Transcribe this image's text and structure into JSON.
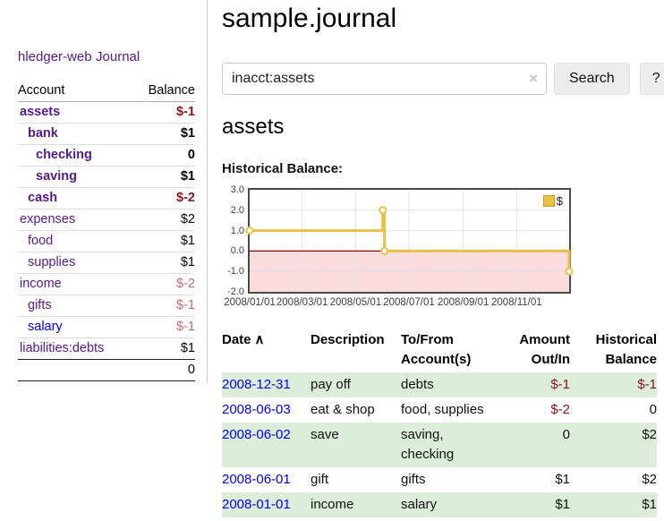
{
  "app": {
    "brand": "hledger-web",
    "nav_journal": "Journal"
  },
  "sidebar": {
    "accounts_table": {
      "headers": {
        "account": "Account",
        "balance": "Balance"
      },
      "rows": [
        {
          "account": "assets",
          "depth": 1,
          "bold": true,
          "balance": "$-1",
          "balance_style": "neg-strong"
        },
        {
          "account": "bank",
          "depth": 2,
          "bold": true,
          "balance": "$1",
          "balance_style": "pos"
        },
        {
          "account": "checking",
          "depth": 3,
          "bold": true,
          "balance": "0",
          "balance_style": "pos"
        },
        {
          "account": "saving",
          "depth": 3,
          "bold": true,
          "balance": "$1",
          "balance_style": "pos"
        },
        {
          "account": "cash",
          "depth": 2,
          "bold": true,
          "balance": "$-2",
          "balance_style": "neg-strong"
        },
        {
          "account": "expenses",
          "depth": 1,
          "bold": false,
          "balance": "$2",
          "balance_style": "pos"
        },
        {
          "account": "food",
          "depth": 2,
          "bold": false,
          "balance": "$1",
          "balance_style": "pos"
        },
        {
          "account": "supplies",
          "depth": 2,
          "bold": false,
          "balance": "$1",
          "balance_style": "pos"
        },
        {
          "account": "income",
          "depth": 1,
          "bold": false,
          "balance": "$-2",
          "balance_style": "neg-soft"
        },
        {
          "account": "gifts",
          "depth": 2,
          "bold": false,
          "balance": "$-1",
          "balance_style": "neg-soft"
        },
        {
          "account": "salary",
          "depth": 2,
          "bold": false,
          "balance": "$-1",
          "balance_style": "neg-soft",
          "link_color": "blue"
        },
        {
          "account": "liabilities:debts",
          "depth": 1,
          "bold": false,
          "balance": "$1",
          "balance_style": "pos"
        }
      ],
      "total": "0"
    }
  },
  "header": {
    "title": "sample.journal"
  },
  "search": {
    "value": "inacct:assets",
    "clear_icon": "×",
    "button_label": "Search",
    "help_label": "?"
  },
  "account_page": {
    "heading": "assets",
    "chart_label": "Historical Balance:"
  },
  "chart_data": {
    "type": "line",
    "style": "step-after",
    "title": "Historical Balance",
    "legend": "$",
    "legend_position": "top-right",
    "grid": true,
    "xrange": [
      "2008-01-01",
      "2008-12-31"
    ],
    "ylim": [
      -2,
      3
    ],
    "yticks": [
      {
        "v": 3,
        "label": "3.0"
      },
      {
        "v": 2,
        "label": "2.0"
      },
      {
        "v": 1,
        "label": "1.0"
      },
      {
        "v": 0,
        "label": "0.0"
      },
      {
        "v": -1,
        "label": "-1.0"
      },
      {
        "v": -2,
        "label": "-2.0"
      }
    ],
    "xticks": [
      {
        "date": "2008-01-01",
        "label": "2008/01/01"
      },
      {
        "date": "2008-03-01",
        "label": "2008/03/01"
      },
      {
        "date": "2008-05-01",
        "label": "2008/05/01"
      },
      {
        "date": "2008-07-01",
        "label": "2008/07/01"
      },
      {
        "date": "2008-09-01",
        "label": "2008/09/01"
      },
      {
        "date": "2008-11-01",
        "label": "2008/11/01"
      }
    ],
    "series": [
      {
        "name": "$",
        "color": "#e8c04a",
        "points": [
          {
            "x": "2008-01-01",
            "y": 1
          },
          {
            "x": "2008-06-01",
            "y": 2
          },
          {
            "x": "2008-06-03",
            "y": 0
          },
          {
            "x": "2008-12-31",
            "y": -1
          }
        ]
      }
    ],
    "negative_region_fill": "#fcdddd",
    "zero_line_color": "#8b0000",
    "grid_color": "#e4e4e4"
  },
  "register": {
    "headers": {
      "date": "Date",
      "description": "Description",
      "accounts": "To/From Account(s)",
      "amount": "Amount Out/In",
      "balance": "Historical Balance"
    },
    "sort_icon": "∧",
    "rows": [
      {
        "date": "2008-12-31",
        "description": "pay off",
        "accounts": "debts",
        "amount": "$-1",
        "amount_neg": true,
        "balance": "$-1",
        "balance_neg": true
      },
      {
        "date": "2008-06-03",
        "description": "eat & shop",
        "accounts": "food, supplies",
        "amount": "$-2",
        "amount_neg": true,
        "balance": "0",
        "balance_neg": false
      },
      {
        "date": "2008-06-02",
        "description": "save",
        "accounts": "saving, checking",
        "amount": "0",
        "amount_neg": false,
        "balance": "$2",
        "balance_neg": false
      },
      {
        "date": "2008-06-01",
        "description": "gift",
        "accounts": "gifts",
        "amount": "$1",
        "amount_neg": false,
        "balance": "$2",
        "balance_neg": false
      },
      {
        "date": "2008-01-01",
        "description": "income",
        "accounts": "salary",
        "amount": "$1",
        "amount_neg": false,
        "balance": "$1",
        "balance_neg": false
      }
    ]
  }
}
